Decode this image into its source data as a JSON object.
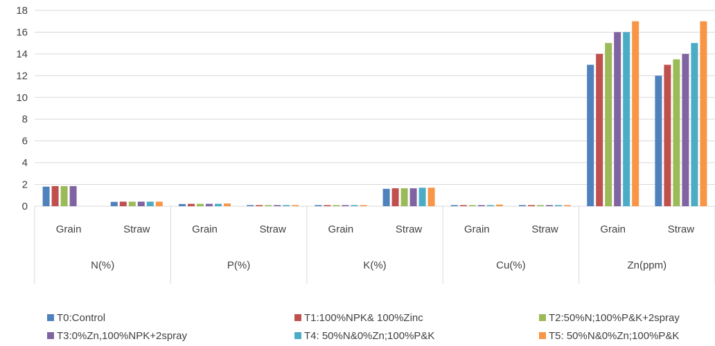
{
  "chart_data": {
    "type": "bar",
    "title": "",
    "xlabel": "",
    "ylabel": "",
    "ylim": [
      0,
      18
    ],
    "yticks": [
      "0",
      "2",
      "4",
      "6",
      "8",
      "10",
      "12",
      "14",
      "16",
      "18"
    ],
    "grid": true,
    "legend_position": "bottom",
    "groups": [
      {
        "label": "N(%)",
        "subs": [
          "Grain",
          "Straw"
        ]
      },
      {
        "label": "P(%)",
        "subs": [
          "Grain",
          "Straw"
        ]
      },
      {
        "label": "K(%)",
        "subs": [
          "Grain",
          "Straw"
        ]
      },
      {
        "label": "Cu(%)",
        "subs": [
          "Grain",
          "Straw"
        ]
      },
      {
        "label": "Zn(ppm)",
        "subs": [
          "Grain",
          "Straw"
        ]
      }
    ],
    "series": [
      {
        "name": "T0:Control",
        "color": "#4F81BD",
        "values": [
          1.8,
          0.4,
          0.2,
          0.1,
          0.1,
          1.6,
          0.1,
          0.1,
          13,
          12
        ]
      },
      {
        "name": "T1:100%NPK& 100%Zinc",
        "color": "#C0504D",
        "values": [
          1.85,
          0.42,
          0.22,
          0.1,
          0.1,
          1.65,
          0.1,
          0.1,
          14,
          13
        ]
      },
      {
        "name": "T2:50%N;100%P&K+2spray",
        "color": "#9BBB59",
        "values": [
          1.85,
          0.42,
          0.22,
          0.1,
          0.1,
          1.65,
          0.1,
          0.1,
          15,
          13.5
        ]
      },
      {
        "name": "T3:0%Zn,100%NPK+2spray",
        "color": "#8064A2",
        "values": [
          1.85,
          0.42,
          0.22,
          0.1,
          0.1,
          1.65,
          0.1,
          0.1,
          16,
          14
        ]
      },
      {
        "name": "T4: 50%N&0%Zn;100%P&K",
        "color": "#4BACC6",
        "values": [
          0,
          0.42,
          0.22,
          0.1,
          0.1,
          1.7,
          0.1,
          0.1,
          16,
          15
        ]
      },
      {
        "name": "T5: 50%N&0%Zn;100%P&K",
        "color": "#F79646",
        "values": [
          0,
          0.42,
          0.25,
          0.1,
          0.1,
          1.7,
          0.15,
          0.1,
          17,
          17
        ]
      }
    ]
  }
}
